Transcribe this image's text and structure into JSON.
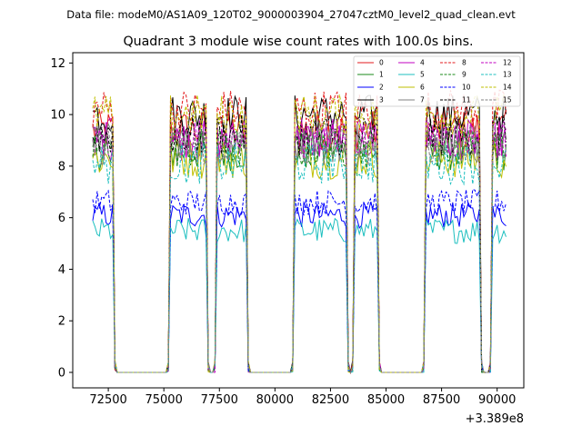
{
  "suptitle": "Data file: modeM0/AS1A09_120T02_9000003904_27047cztM0_level2_quad_clean.evt",
  "chart_data": {
    "type": "line",
    "title": "Quadrant 3 module wise count rates with 100.0s bins.",
    "xlabel": "",
    "ylabel": "",
    "x_offset_label": "+3.389e8",
    "xlim": [
      70900,
      91200
    ],
    "ylim": [
      -0.6,
      12.4
    ],
    "xticks": [
      72500,
      75000,
      77500,
      80000,
      82500,
      85000,
      87500,
      90000
    ],
    "xtick_labels": [
      "72500",
      "75000",
      "77500",
      "80000",
      "82500",
      "85000",
      "87500",
      "90000"
    ],
    "yticks": [
      0,
      2,
      4,
      6,
      8,
      10,
      12
    ],
    "ytick_labels": [
      "0",
      "2",
      "4",
      "6",
      "8",
      "10",
      "12"
    ],
    "legend_position": "top-right",
    "legend_columns": 4,
    "series": [
      {
        "name": "0",
        "color": "#e31a1c",
        "dash": "solid",
        "level": 9.4
      },
      {
        "name": "1",
        "color": "#1a8a1a",
        "dash": "solid",
        "level": 8.6
      },
      {
        "name": "2",
        "color": "#0000ff",
        "dash": "solid",
        "level": 6.1
      },
      {
        "name": "3",
        "color": "#000000",
        "dash": "solid",
        "level": 10.0
      },
      {
        "name": "4",
        "color": "#c000c0",
        "dash": "solid",
        "level": 9.0
      },
      {
        "name": "5",
        "color": "#1cbfbf",
        "dash": "solid",
        "level": 5.5
      },
      {
        "name": "6",
        "color": "#bfbf00",
        "dash": "solid",
        "level": 8.3
      },
      {
        "name": "7",
        "color": "#808080",
        "dash": "solid",
        "level": 8.9
      },
      {
        "name": "8",
        "color": "#e31a1c",
        "dash": "dashed",
        "level": 10.2
      },
      {
        "name": "9",
        "color": "#1a8a1a",
        "dash": "dashed",
        "level": 8.7
      },
      {
        "name": "10",
        "color": "#0000ff",
        "dash": "dashed",
        "level": 6.6
      },
      {
        "name": "11",
        "color": "#000000",
        "dash": "dashed",
        "level": 9.2
      },
      {
        "name": "12",
        "color": "#c000c0",
        "dash": "dashed",
        "level": 9.1
      },
      {
        "name": "13",
        "color": "#1cbfbf",
        "dash": "dashed",
        "level": 8.1
      },
      {
        "name": "14",
        "color": "#bfbf00",
        "dash": "dashed",
        "level": 10.0
      },
      {
        "name": "15",
        "color": "#808080",
        "dash": "dashed",
        "level": 8.8
      }
    ],
    "x_start": 71800,
    "x_end": 90400,
    "bin_size": 100,
    "active_intervals": [
      [
        71800,
        72700
      ],
      [
        75300,
        76900
      ],
      [
        77400,
        78700
      ],
      [
        80900,
        83200
      ],
      [
        83600,
        84600
      ],
      [
        86800,
        89200
      ],
      [
        89800,
        90400
      ]
    ],
    "rolloff_bins": 1
  }
}
